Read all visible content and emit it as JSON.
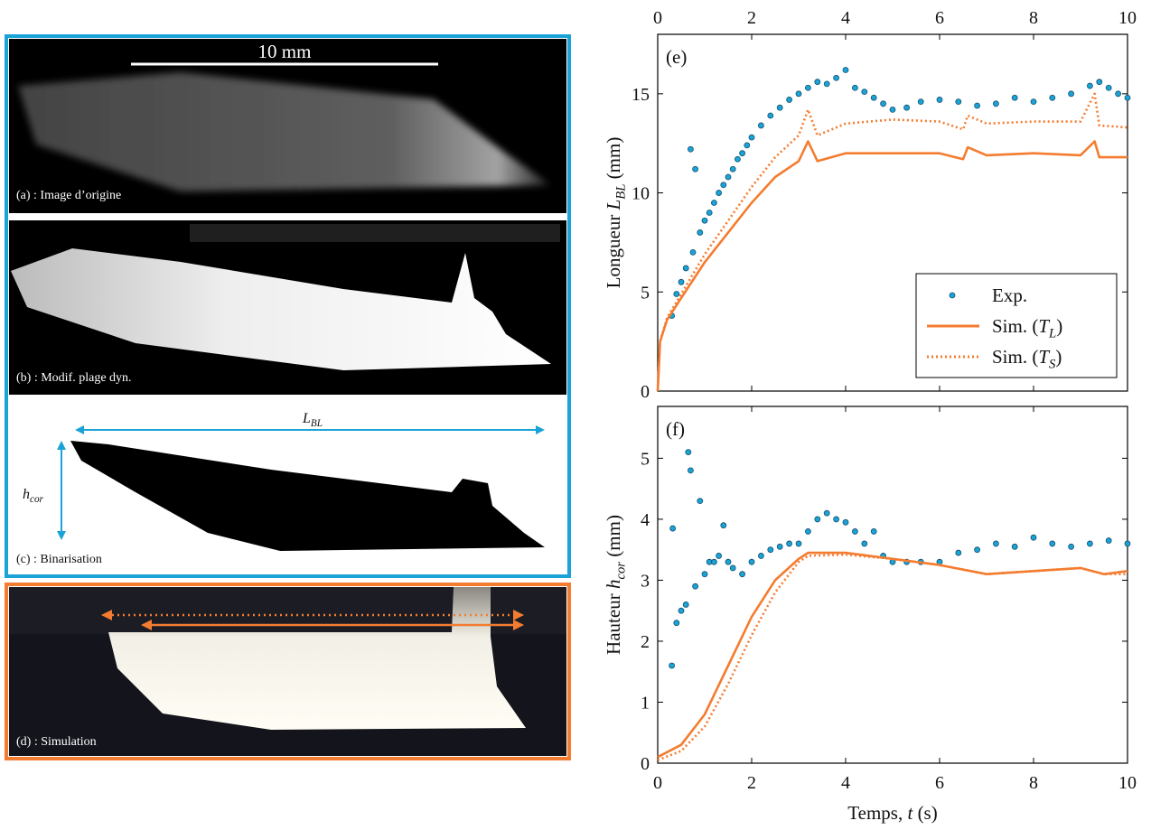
{
  "panels": {
    "scale_bar": "10 mm",
    "labels": [
      "(a) : Image d’origine",
      "(b) : Modif. plage dyn.",
      "(c) : Binarisation",
      "(d) : Simulation"
    ],
    "l_bl": {
      "var": "L",
      "sub": "BL"
    },
    "h_cor": {
      "var": "h",
      "sub": "cor"
    }
  },
  "chart_data": [
    {
      "type": "line",
      "panel_label": "(e)",
      "y_label": {
        "pre": "Longueur ",
        "var": "L",
        "sub": "BL",
        "post": " (mm)"
      },
      "xlim": [
        0,
        10
      ],
      "xticks": [
        0,
        2,
        4,
        6,
        8,
        10
      ],
      "ylim": [
        0,
        18
      ],
      "yticks": [
        0,
        5,
        10,
        15
      ],
      "legend": "lower right",
      "series": [
        {
          "name": "Exp.",
          "color": "#1aa3d6",
          "style": "markers",
          "x": [
            0.3,
            0.4,
            0.5,
            0.6,
            0.7,
            0.75,
            0.8,
            0.9,
            1.0,
            1.1,
            1.2,
            1.3,
            1.4,
            1.5,
            1.6,
            1.7,
            1.8,
            1.9,
            2.0,
            2.2,
            2.4,
            2.6,
            2.8,
            3.0,
            3.2,
            3.4,
            3.6,
            3.8,
            4.0,
            4.2,
            4.4,
            4.6,
            4.8,
            5.0,
            5.3,
            5.6,
            6.0,
            6.4,
            6.8,
            7.2,
            7.6,
            8.0,
            8.4,
            8.8,
            9.2,
            9.4,
            9.6,
            9.8,
            10.0
          ],
          "values": [
            3.8,
            4.9,
            5.5,
            6.2,
            12.2,
            7.0,
            11.2,
            8.0,
            8.6,
            9.0,
            9.5,
            10.0,
            10.4,
            10.8,
            11.2,
            11.7,
            12.0,
            12.4,
            12.8,
            13.4,
            13.9,
            14.3,
            14.7,
            15.0,
            15.3,
            15.6,
            15.5,
            15.8,
            16.2,
            15.3,
            15.1,
            14.8,
            14.5,
            14.2,
            14.3,
            14.6,
            14.7,
            14.6,
            14.4,
            14.5,
            14.8,
            14.6,
            14.8,
            15.0,
            15.4,
            15.6,
            15.3,
            15.0,
            14.8
          ]
        },
        {
          "name": {
            "pre": "Sim. (",
            "var": "T",
            "sub": "L",
            "post": ")"
          },
          "color": "#f47c30",
          "style": "solid",
          "x": [
            0,
            0.05,
            0.2,
            0.5,
            1,
            1.5,
            2,
            2.5,
            3,
            3.2,
            3.4,
            4,
            5,
            6,
            6.5,
            6.6,
            7,
            8,
            9,
            9.3,
            9.4,
            10
          ],
          "values": [
            0,
            2.5,
            3.6,
            4.7,
            6.5,
            8,
            9.5,
            10.8,
            11.6,
            12.6,
            11.6,
            12,
            12,
            12,
            11.7,
            12.3,
            11.9,
            12,
            11.9,
            12.6,
            11.8,
            11.8
          ]
        },
        {
          "name": {
            "pre": "Sim. (",
            "var": "T",
            "sub": "S",
            "post": ")"
          },
          "color": "#f47c30",
          "style": "dotted",
          "x": [
            0,
            0.05,
            0.2,
            0.5,
            1,
            1.5,
            2,
            2.5,
            3,
            3.2,
            3.4,
            4,
            5,
            6,
            6.5,
            6.6,
            7,
            8,
            9,
            9.3,
            9.4,
            10
          ],
          "values": [
            0,
            2.5,
            3.7,
            4.9,
            6.9,
            8.6,
            10.3,
            11.8,
            12.9,
            14.2,
            12.9,
            13.5,
            13.7,
            13.6,
            13.2,
            13.9,
            13.5,
            13.6,
            13.6,
            15,
            13.4,
            13.3
          ]
        }
      ]
    },
    {
      "type": "line",
      "panel_label": "(f)",
      "y_label": {
        "pre": "Hauteur ",
        "var": "h",
        "sub": "cor",
        "post": " (mm)"
      },
      "x_label": {
        "pre": "Temps, ",
        "var": "t",
        "post": " (s)"
      },
      "xlim": [
        0,
        10
      ],
      "xticks": [
        0,
        2,
        4,
        6,
        8,
        10
      ],
      "ylim": [
        0,
        5.85
      ],
      "yticks": [
        0,
        1,
        2,
        3,
        4,
        5
      ],
      "series": [
        {
          "color": "#1aa3d6",
          "style": "markers",
          "x": [
            0.3,
            0.32,
            0.4,
            0.5,
            0.6,
            0.65,
            0.7,
            0.8,
            0.9,
            1.0,
            1.1,
            1.2,
            1.3,
            1.4,
            1.5,
            1.6,
            1.8,
            2.0,
            2.2,
            2.4,
            2.6,
            2.8,
            3.0,
            3.2,
            3.4,
            3.6,
            3.8,
            4.0,
            4.2,
            4.4,
            4.6,
            4.8,
            5.0,
            5.3,
            5.6,
            6.0,
            6.4,
            6.8,
            7.2,
            7.6,
            8.0,
            8.4,
            8.8,
            9.2,
            9.6,
            10.0
          ],
          "values": [
            1.6,
            3.85,
            2.3,
            2.5,
            2.6,
            5.1,
            4.8,
            2.9,
            4.3,
            3.1,
            3.3,
            3.3,
            3.4,
            3.9,
            3.3,
            3.2,
            3.1,
            3.3,
            3.4,
            3.5,
            3.55,
            3.6,
            3.6,
            3.8,
            4.0,
            4.1,
            4.0,
            3.95,
            3.8,
            3.6,
            3.8,
            3.4,
            3.3,
            3.3,
            3.3,
            3.3,
            3.45,
            3.5,
            3.6,
            3.55,
            3.7,
            3.6,
            3.55,
            3.6,
            3.65,
            3.6
          ]
        },
        {
          "color": "#f47c30",
          "style": "solid",
          "x": [
            0,
            0.5,
            1,
            1.5,
            2,
            2.5,
            3,
            3.2,
            4,
            5,
            6,
            7,
            8,
            9,
            9.5,
            10
          ],
          "values": [
            0.1,
            0.3,
            0.8,
            1.6,
            2.4,
            3.0,
            3.35,
            3.45,
            3.45,
            3.35,
            3.25,
            3.1,
            3.15,
            3.2,
            3.1,
            3.15
          ]
        },
        {
          "color": "#f47c30",
          "style": "dotted",
          "x": [
            0,
            0.5,
            1,
            1.5,
            2,
            2.5,
            3,
            3.2,
            4,
            5,
            6,
            7,
            8,
            9,
            9.5,
            10
          ],
          "values": [
            0.05,
            0.2,
            0.6,
            1.3,
            2.1,
            2.8,
            3.3,
            3.4,
            3.42,
            3.35,
            3.25,
            3.1,
            3.15,
            3.2,
            3.1,
            3.1
          ]
        }
      ]
    }
  ]
}
